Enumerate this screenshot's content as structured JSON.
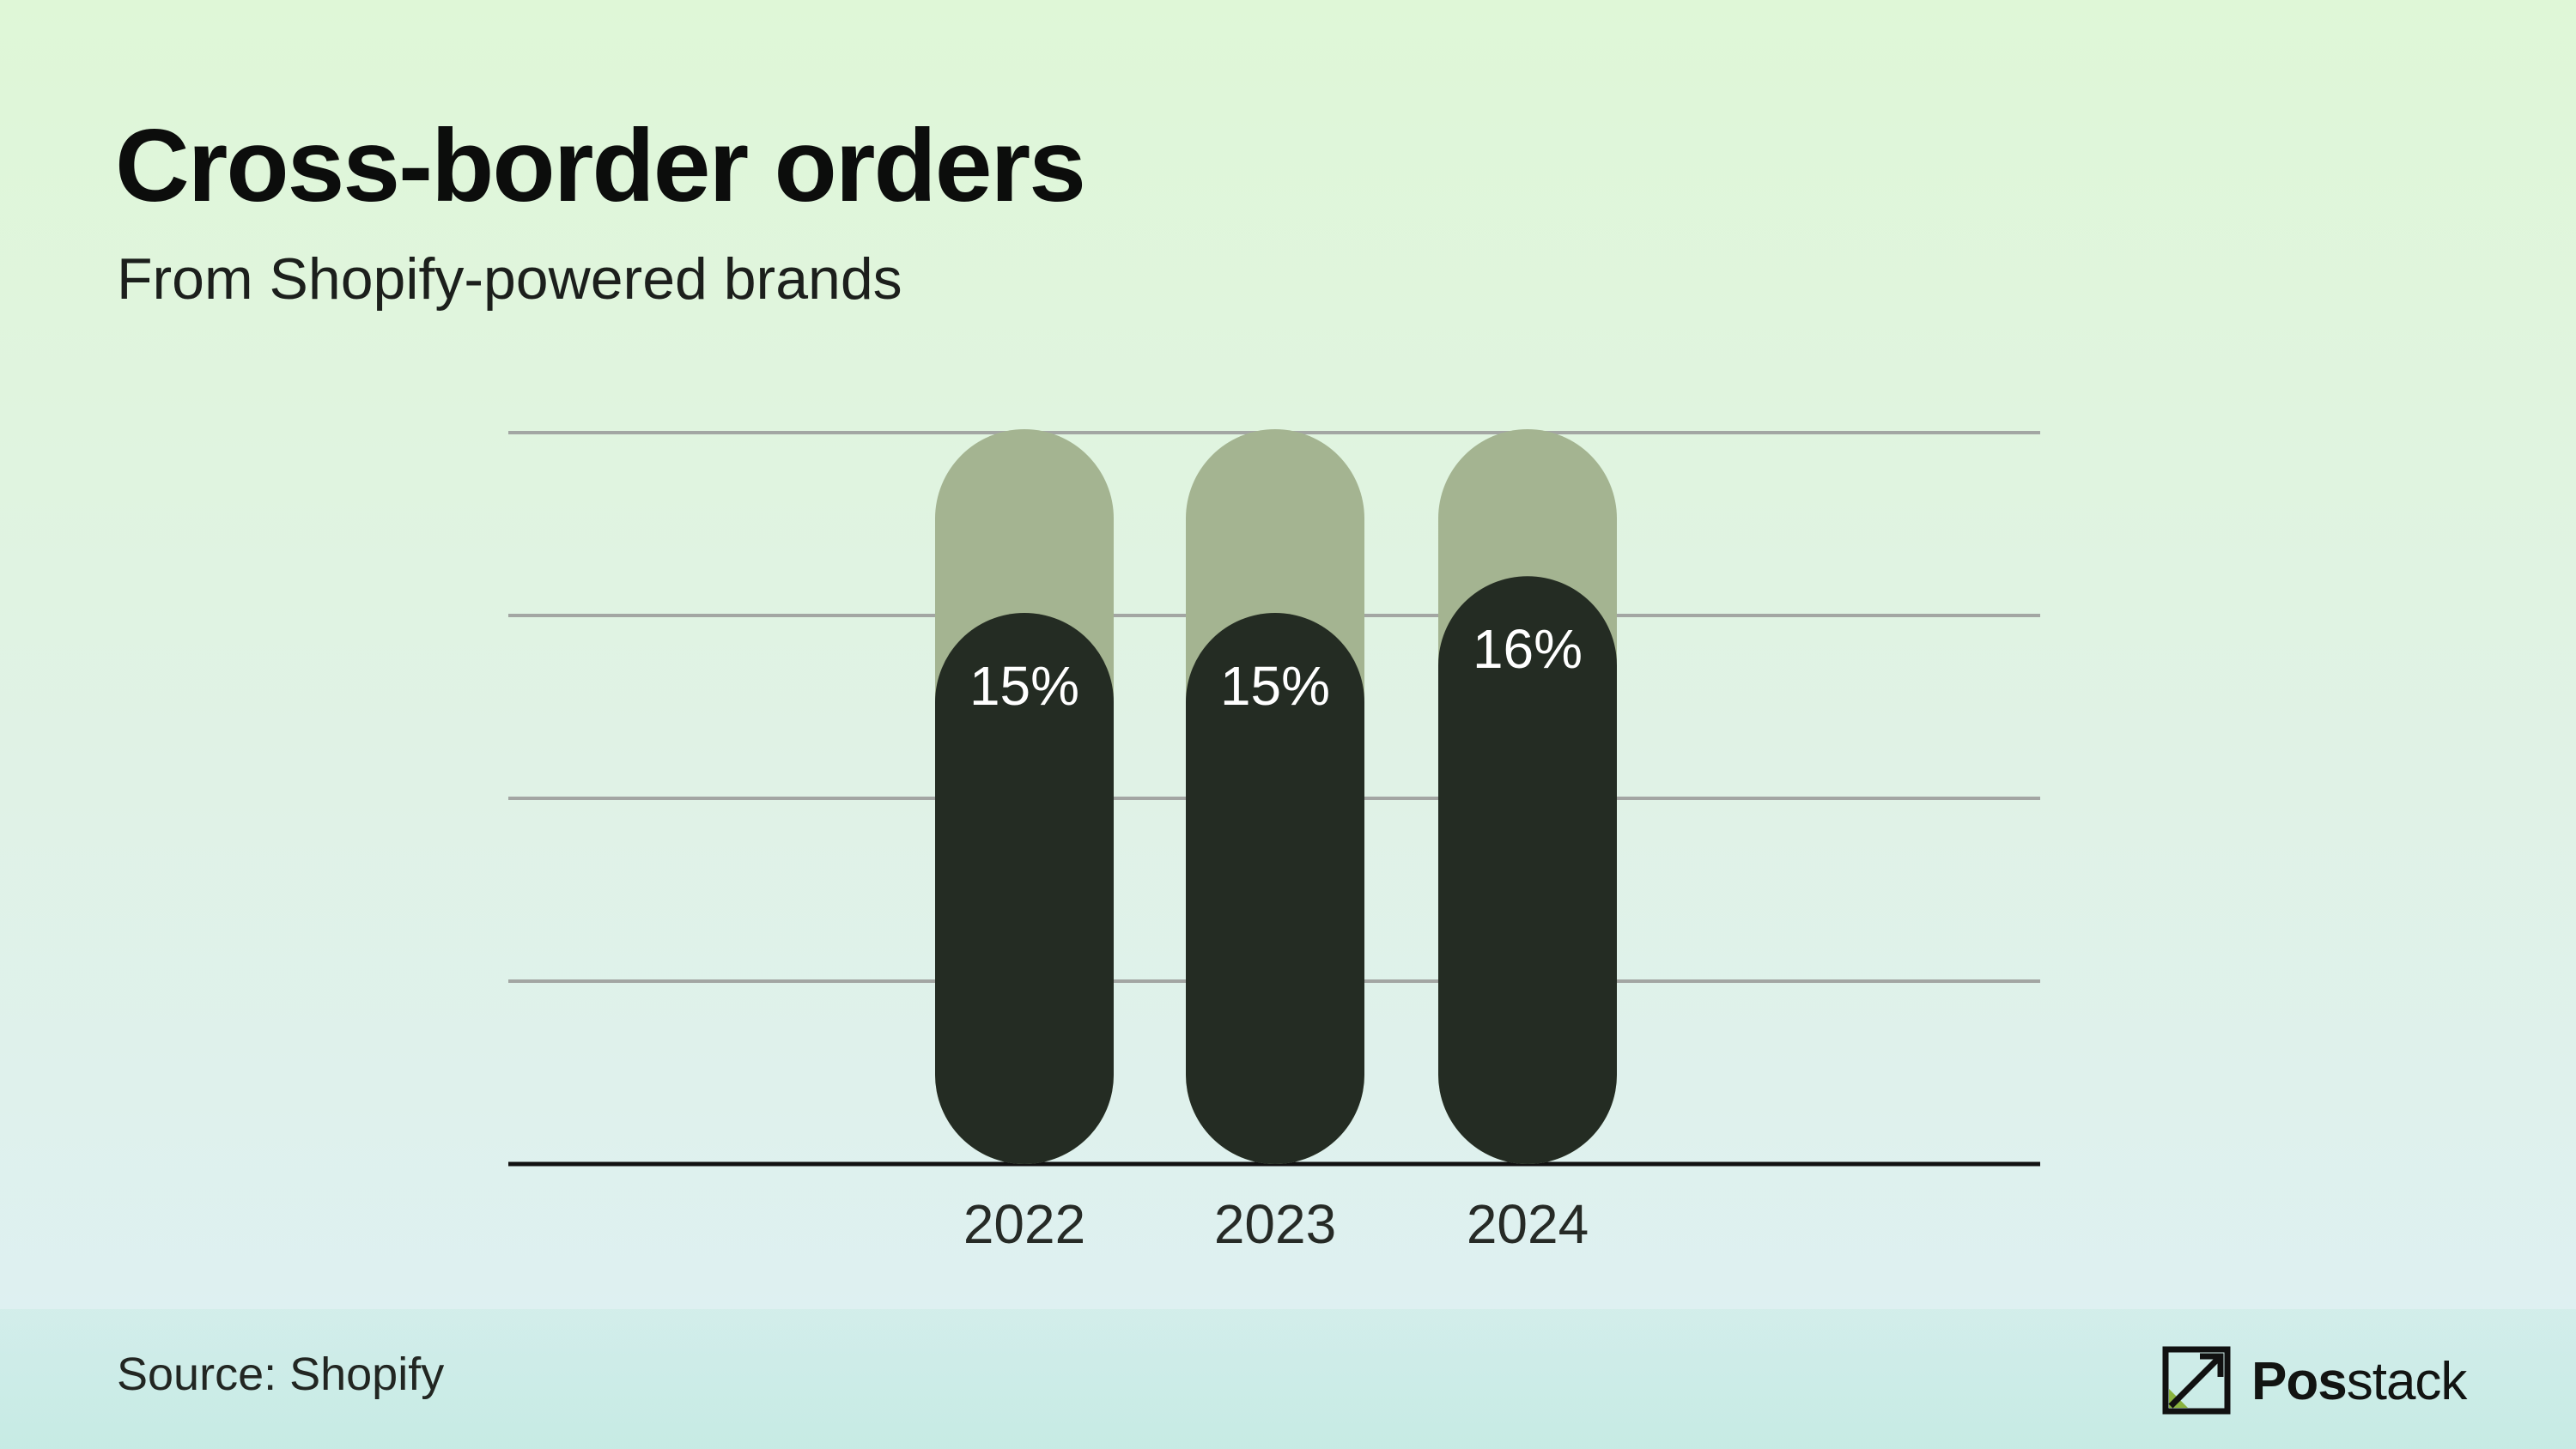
{
  "header": {
    "title": "Cross-border orders",
    "subtitle": "From Shopify-powered brands"
  },
  "footer": {
    "source": "Source: Shopify",
    "brand_bold": "Pos",
    "brand_rest": "stack",
    "logo_icon": "posstack-chart-icon"
  },
  "colors": {
    "bar_fill": "#242c23",
    "bar_track": "#a4b491",
    "gridline": "#a3a6a3",
    "baseline": "#111111",
    "label_text": "#ffffff",
    "tick_text": "#262a26",
    "logo_accent": "#8ab33f"
  },
  "chart_data": {
    "type": "bar",
    "title": "Cross-border orders",
    "subtitle": "From Shopify-powered brands",
    "categories": [
      "2022",
      "2023",
      "2024"
    ],
    "values": [
      15,
      15,
      16
    ],
    "data_labels": [
      "15%",
      "15%",
      "16%"
    ],
    "unit": "%",
    "ylim": [
      0,
      20
    ],
    "grid": true,
    "legend": "none"
  }
}
